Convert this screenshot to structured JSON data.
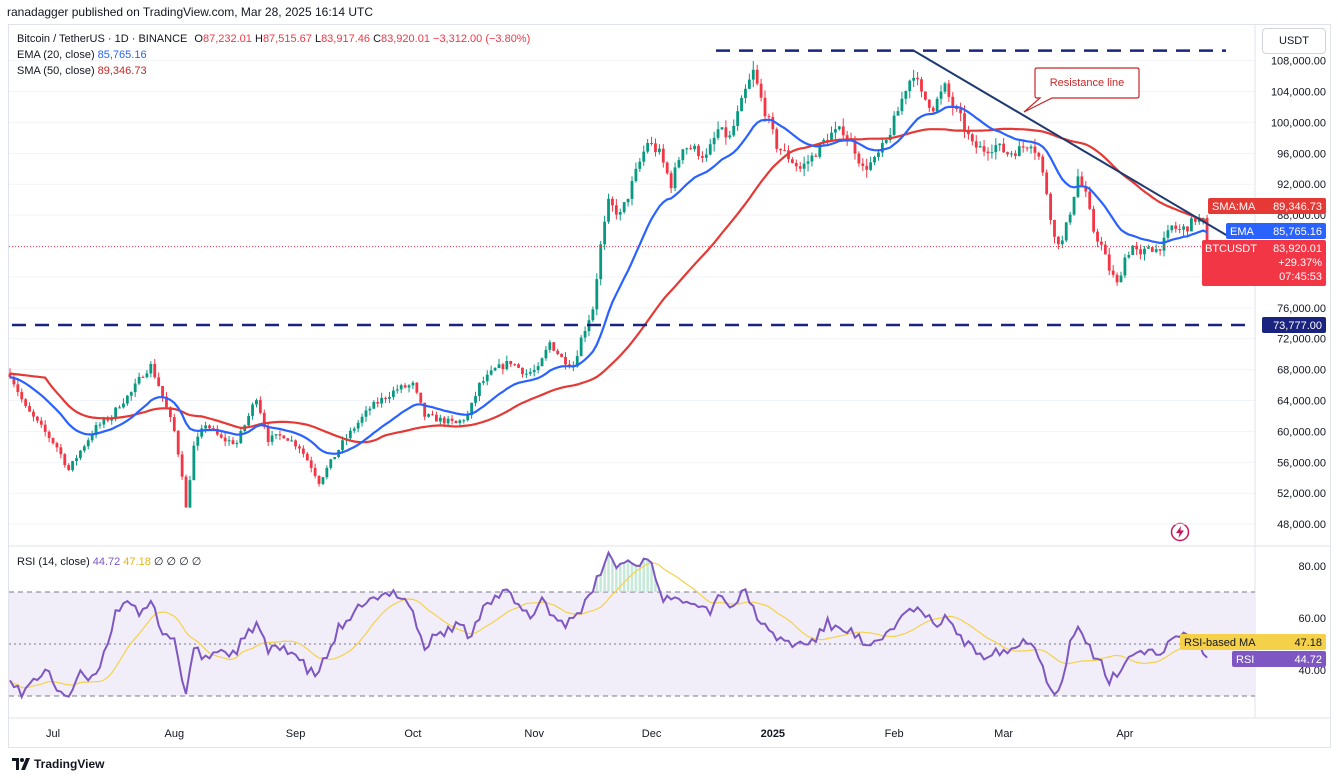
{
  "publisher": "ranadagger published on TradingView.com, Mar 28, 2025 16:14 UTC",
  "legend": {
    "symbol": "Bitcoin / TetherUS · 1D · BINANCE",
    "o_label": "O",
    "o": "87,232.01",
    "h_label": "H",
    "h": "87,515.67",
    "l_label": "L",
    "l": "83,917.46",
    "c_label": "C",
    "c": "83,920.01",
    "change": "−3,312.00 (−3.80%)",
    "ema_label": "EMA (20, close)",
    "ema_value": "85,765.16",
    "sma_label": "SMA (50, close)",
    "sma_value": "89,346.73",
    "rsi_label": "RSI (14, close)",
    "rsi_value": "44.72",
    "rsi_ma_value": "47.18",
    "rsi_extra": "∅ ∅ ∅ ∅"
  },
  "currency": "USDT",
  "footer": "TradingView",
  "colors": {
    "up": "#089981",
    "down": "#f23645",
    "ema": "#2962ff",
    "sma": "#e53935",
    "rsi": "#7e57c2",
    "rsi_ma": "#f5d14a",
    "trendline": "#1e3a70",
    "support": "#1a237e"
  },
  "chart_data": [
    {
      "type": "candlestick",
      "title": "Bitcoin / TetherUS · 1D · BINANCE",
      "x": [
        "Jul",
        "Aug",
        "Sep",
        "Oct",
        "Nov",
        "Dec",
        "2025",
        "Feb",
        "Mar",
        "Apr"
      ],
      "y_ticks": [
        "108,000.00",
        "104,000.00",
        "100,000.00",
        "96,000.00",
        "92,000.00",
        "88,000.00",
        "84,000.00",
        "80,000.00",
        "76,000.00",
        "72,000.00",
        "68,000.00",
        "64,000.00",
        "60,000.00",
        "56,000.00",
        "52,000.00",
        "48,000.00"
      ],
      "ylim": [
        46000,
        110000
      ],
      "price_anchors": [
        [
          0,
          67500
        ],
        [
          4,
          63000
        ],
        [
          8,
          60500
        ],
        [
          12,
          58000
        ],
        [
          15,
          55000
        ],
        [
          18,
          57500
        ],
        [
          22,
          60500
        ],
        [
          26,
          62000
        ],
        [
          28,
          63500
        ],
        [
          31,
          65000
        ],
        [
          34,
          67500
        ],
        [
          36,
          68500
        ],
        [
          38,
          66000
        ],
        [
          40,
          63000
        ],
        [
          42,
          60000
        ],
        [
          44,
          54500
        ],
        [
          45,
          50000
        ],
        [
          47,
          58000
        ],
        [
          50,
          61000
        ],
        [
          54,
          59000
        ],
        [
          58,
          58500
        ],
        [
          61,
          62000
        ],
        [
          63,
          64500
        ],
        [
          66,
          59000
        ],
        [
          70,
          59500
        ],
        [
          74,
          58000
        ],
        [
          77,
          55500
        ],
        [
          79,
          53500
        ],
        [
          82,
          56000
        ],
        [
          85,
          58500
        ],
        [
          88,
          60500
        ],
        [
          92,
          63000
        ],
        [
          96,
          64500
        ],
        [
          99,
          65500
        ],
        [
          103,
          66000
        ],
        [
          106,
          62000
        ],
        [
          110,
          61500
        ],
        [
          114,
          61000
        ],
        [
          117,
          62000
        ],
        [
          120,
          66000
        ],
        [
          124,
          68000
        ],
        [
          128,
          69000
        ],
        [
          132,
          67500
        ],
        [
          135,
          68000
        ],
        [
          138,
          71500
        ],
        [
          141,
          69500
        ],
        [
          144,
          68500
        ],
        [
          146,
          72000
        ],
        [
          149,
          76000
        ],
        [
          151,
          84000
        ],
        [
          153,
          89500
        ],
        [
          156,
          88000
        ],
        [
          158,
          90500
        ],
        [
          160,
          93500
        ],
        [
          163,
          97500
        ],
        [
          166,
          96000
        ],
        [
          169,
          92000
        ],
        [
          172,
          97000
        ],
        [
          175,
          96500
        ],
        [
          178,
          95500
        ],
        [
          181,
          99000
        ],
        [
          184,
          98000
        ],
        [
          186,
          101000
        ],
        [
          188,
          104000
        ],
        [
          190,
          106500
        ],
        [
          192,
          103000
        ],
        [
          194,
          100000
        ],
        [
          196,
          97000
        ],
        [
          199,
          95500
        ],
        [
          202,
          94000
        ],
        [
          205,
          95500
        ],
        [
          208,
          97500
        ],
        [
          210,
          98500
        ],
        [
          213,
          99000
        ],
        [
          216,
          96500
        ],
        [
          218,
          94000
        ],
        [
          221,
          95000
        ],
        [
          224,
          97500
        ],
        [
          227,
          101500
        ],
        [
          229,
          104500
        ],
        [
          231,
          106500
        ],
        [
          233,
          103500
        ],
        [
          236,
          102000
        ],
        [
          239,
          104500
        ],
        [
          241,
          102000
        ],
        [
          243,
          100500
        ],
        [
          246,
          97000
        ],
        [
          249,
          96500
        ],
        [
          252,
          97000
        ],
        [
          255,
          96000
        ],
        [
          258,
          96500
        ],
        [
          261,
          97500
        ],
        [
          263,
          95500
        ],
        [
          265,
          91000
        ],
        [
          267,
          85000
        ],
        [
          269,
          84500
        ],
        [
          271,
          88500
        ],
        [
          273,
          93000
        ],
        [
          275,
          90500
        ],
        [
          277,
          86000
        ],
        [
          279,
          84000
        ],
        [
          281,
          81000
        ],
        [
          283,
          79000
        ],
        [
          285,
          82500
        ],
        [
          287,
          84000
        ],
        [
          289,
          82500
        ],
        [
          291,
          84000
        ],
        [
          293,
          83500
        ],
        [
          295,
          84500
        ],
        [
          297,
          86500
        ],
        [
          299,
          86000
        ],
        [
          301,
          86500
        ],
        [
          303,
          87500
        ],
        [
          305,
          87200
        ],
        [
          306,
          83920
        ]
      ],
      "ema_period": 20,
      "sma_period": 50,
      "last": {
        "label": "BTCUSDT",
        "price": "83,920.01",
        "change_pct": "+29.37%",
        "countdown": "07:45:53"
      },
      "ema_tag": {
        "label": "EMA",
        "value": "85,765.16"
      },
      "sma_tag": {
        "label": "SMA:MA",
        "value": "89,346.73"
      },
      "support": {
        "value": 73777,
        "label": "73,777.00"
      },
      "resistance_top": 109300,
      "trendline": {
        "from": [
          231,
          109300
        ],
        "to": [
          311,
          85400
        ]
      },
      "annotation": "Resistance line"
    },
    {
      "type": "line",
      "title": "RSI (14, close)",
      "y_ticks": [
        "80.00",
        "60.00",
        "40.00"
      ],
      "ylim": [
        20,
        90
      ],
      "bands": [
        30,
        50,
        70
      ],
      "rsi_anchors": [
        [
          0,
          38
        ],
        [
          3,
          30
        ],
        [
          6,
          36
        ],
        [
          9,
          40
        ],
        [
          12,
          33
        ],
        [
          15,
          30
        ],
        [
          18,
          38
        ],
        [
          21,
          36
        ],
        [
          24,
          46
        ],
        [
          27,
          62
        ],
        [
          30,
          68
        ],
        [
          33,
          60
        ],
        [
          36,
          66
        ],
        [
          39,
          55
        ],
        [
          42,
          52
        ],
        [
          44,
          36
        ],
        [
          45,
          32
        ],
        [
          47,
          48
        ],
        [
          50,
          44
        ],
        [
          53,
          48
        ],
        [
          57,
          46
        ],
        [
          60,
          52
        ],
        [
          63,
          58
        ],
        [
          66,
          47
        ],
        [
          70,
          49
        ],
        [
          73,
          46
        ],
        [
          76,
          40
        ],
        [
          78,
          38
        ],
        [
          81,
          45
        ],
        [
          84,
          56
        ],
        [
          87,
          58
        ],
        [
          90,
          66
        ],
        [
          94,
          67
        ],
        [
          98,
          70
        ],
        [
          101,
          68
        ],
        [
          103,
          62
        ],
        [
          106,
          48
        ],
        [
          109,
          54
        ],
        [
          112,
          55
        ],
        [
          115,
          58
        ],
        [
          118,
          52
        ],
        [
          121,
          66
        ],
        [
          124,
          68
        ],
        [
          127,
          70
        ],
        [
          130,
          64
        ],
        [
          133,
          60
        ],
        [
          136,
          68
        ],
        [
          139,
          60
        ],
        [
          142,
          58
        ],
        [
          145,
          62
        ],
        [
          148,
          67
        ],
        [
          151,
          78
        ],
        [
          153,
          84
        ],
        [
          155,
          80
        ],
        [
          158,
          82
        ],
        [
          160,
          80
        ],
        [
          163,
          84
        ],
        [
          165,
          76
        ],
        [
          167,
          68
        ],
        [
          170,
          66
        ],
        [
          173,
          68
        ],
        [
          176,
          66
        ],
        [
          179,
          63
        ],
        [
          182,
          70
        ],
        [
          184,
          64
        ],
        [
          186,
          67
        ],
        [
          188,
          70
        ],
        [
          190,
          64
        ],
        [
          192,
          58
        ],
        [
          194,
          54
        ],
        [
          197,
          52
        ],
        [
          200,
          50
        ],
        [
          203,
          50
        ],
        [
          206,
          52
        ],
        [
          209,
          58
        ],
        [
          211,
          56
        ],
        [
          214,
          56
        ],
        [
          217,
          52
        ],
        [
          219,
          48
        ],
        [
          222,
          50
        ],
        [
          225,
          56
        ],
        [
          228,
          60
        ],
        [
          231,
          64
        ],
        [
          234,
          60
        ],
        [
          237,
          58
        ],
        [
          240,
          60
        ],
        [
          243,
          52
        ],
        [
          246,
          48
        ],
        [
          249,
          46
        ],
        [
          252,
          48
        ],
        [
          255,
          47
        ],
        [
          258,
          50
        ],
        [
          261,
          52
        ],
        [
          263,
          46
        ],
        [
          265,
          36
        ],
        [
          267,
          32
        ],
        [
          269,
          36
        ],
        [
          271,
          50
        ],
        [
          273,
          56
        ],
        [
          275,
          52
        ],
        [
          277,
          44
        ],
        [
          279,
          42
        ],
        [
          281,
          36
        ],
        [
          283,
          38
        ],
        [
          285,
          44
        ],
        [
          287,
          46
        ],
        [
          290,
          48
        ],
        [
          293,
          46
        ],
        [
          296,
          50
        ],
        [
          299,
          52
        ],
        [
          302,
          54
        ],
        [
          304,
          50
        ],
        [
          306,
          44.72
        ]
      ],
      "rsi_ma_period": 14,
      "rsi_tag": {
        "label": "RSI",
        "value": "44.72"
      },
      "rsi_ma_tag": {
        "label": "RSI-based MA",
        "value": "47.18"
      }
    }
  ]
}
